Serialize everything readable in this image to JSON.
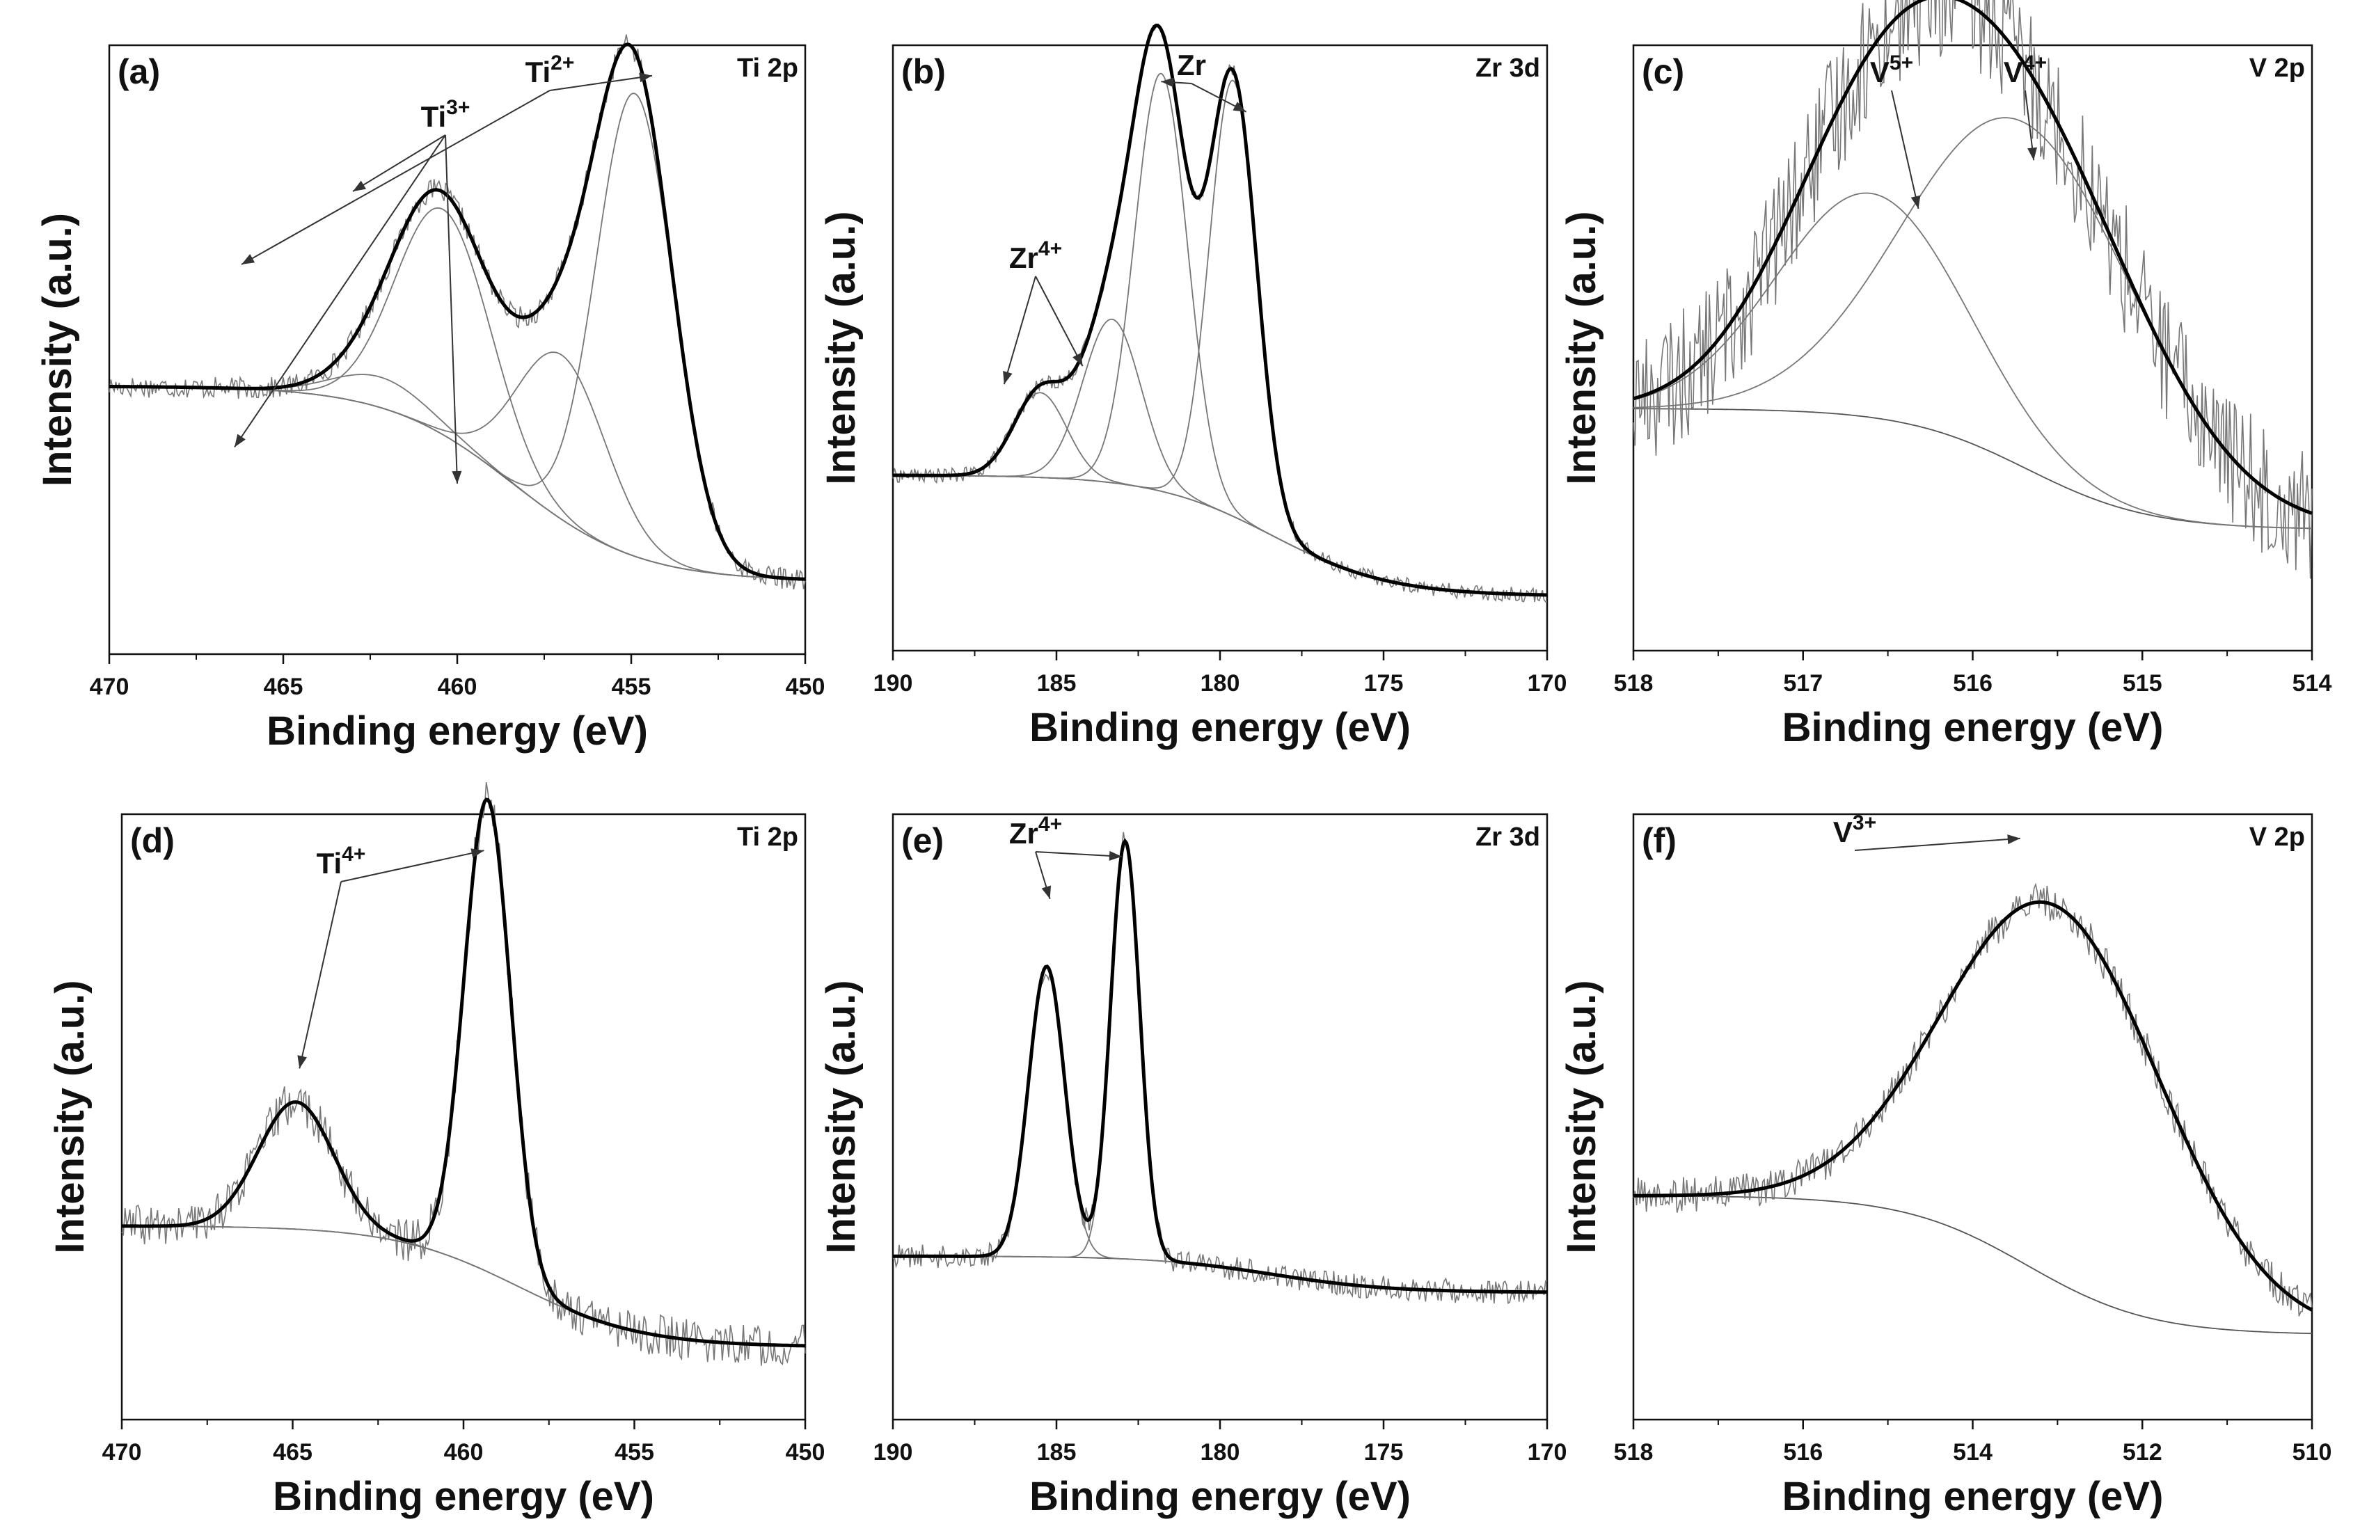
{
  "figure": {
    "panels": [
      {
        "id": "a",
        "panel_label": "(a)",
        "element_label": "Ti 2p",
        "chart_data": {
          "type": "line",
          "xlabel": "Binding energy (eV)",
          "ylabel": "Intensity (a.u.)",
          "xlim": [
            470,
            450
          ],
          "ylim": [
            0,
            1
          ],
          "x_ticks": [
            "470",
            "465",
            "460",
            "455",
            "450"
          ],
          "background": {
            "left": 0.44,
            "right": 0.12
          },
          "noise": 0.018,
          "peaks": [
            {
              "center": 462.2,
              "height": 0.05,
              "fwhm": 3.2
            },
            {
              "center": 460.4,
              "height": 0.37,
              "fwhm": 3.2
            },
            {
              "center": 457.0,
              "height": 0.27,
              "fwhm": 3.0
            },
            {
              "center": 454.9,
              "height": 0.76,
              "fwhm": 2.6
            }
          ],
          "annotations": [
            {
              "text": "Ti",
              "sup": "3+"
            },
            {
              "text": "Ti",
              "sup": "2+"
            }
          ]
        }
      },
      {
        "id": "b",
        "panel_label": "(b)",
        "element_label": "Zr 3d",
        "chart_data": {
          "type": "line",
          "xlabel": "Binding energy (eV)",
          "ylabel": "Intensity (a.u.)",
          "xlim": [
            190,
            170
          ],
          "ylim": [
            0,
            1
          ],
          "x_ticks": [
            "190",
            "185",
            "180",
            "175",
            "170"
          ],
          "background": {
            "left": 0.29,
            "right": 0.09
          },
          "noise": 0.012,
          "peaks": [
            {
              "center": 185.5,
              "height": 0.14,
              "fwhm": 1.9
            },
            {
              "center": 183.3,
              "height": 0.27,
              "fwhm": 2.1
            },
            {
              "center": 181.8,
              "height": 0.69,
              "fwhm": 1.9
            },
            {
              "center": 179.6,
              "height": 0.72,
              "fwhm": 1.7
            }
          ],
          "annotations": [
            {
              "text": "Zr",
              "sup": "4+"
            },
            {
              "text": "Zr",
              "sup": ""
            }
          ]
        }
      },
      {
        "id": "c",
        "panel_label": "(c)",
        "element_label": "V 2p",
        "chart_data": {
          "type": "line",
          "xlabel": "Binding energy (eV)",
          "ylabel": "Intensity (a.u.)",
          "xlim": [
            518,
            514
          ],
          "ylim": [
            0,
            1
          ],
          "x_ticks": [
            "518",
            "517",
            "516",
            "515",
            "514"
          ],
          "background": {
            "left": 0.4,
            "right": 0.2
          },
          "noise": 0.11,
          "peaks": [
            {
              "center": 516.6,
              "height": 0.37,
              "fwhm": 1.3
            },
            {
              "center": 515.7,
              "height": 0.57,
              "fwhm": 1.6
            }
          ],
          "annotations": [
            {
              "text": "V",
              "sup": "5+"
            },
            {
              "text": "V",
              "sup": "4+"
            }
          ]
        }
      },
      {
        "id": "d",
        "panel_label": "(d)",
        "element_label": "Ti 2p",
        "chart_data": {
          "type": "line",
          "xlabel": "Binding energy (eV)",
          "ylabel": "Intensity (a.u.)",
          "xlim": [
            470,
            450
          ],
          "ylim": [
            0,
            1
          ],
          "x_ticks": [
            "470",
            "465",
            "460",
            "455",
            "450"
          ],
          "background": {
            "left": 0.32,
            "right": 0.12
          },
          "noise": 0.035,
          "peaks": [
            {
              "center": 464.9,
              "height": 0.21,
              "fwhm": 2.6
            },
            {
              "center": 459.3,
              "height": 0.78,
              "fwhm": 1.6
            }
          ],
          "annotations": [
            {
              "text": "Ti",
              "sup": "4+"
            }
          ]
        }
      },
      {
        "id": "e",
        "panel_label": "(e)",
        "element_label": "Zr 3d",
        "chart_data": {
          "type": "line",
          "xlabel": "Binding energy (eV)",
          "ylabel": "Intensity (a.u.)",
          "xlim": [
            190,
            170
          ],
          "ylim": [
            0,
            1
          ],
          "x_ticks": [
            "190",
            "185",
            "180",
            "175",
            "170"
          ],
          "background": {
            "left": 0.27,
            "right": 0.21
          },
          "noise": 0.02,
          "peaks": [
            {
              "center": 185.3,
              "height": 0.48,
              "fwhm": 1.3
            },
            {
              "center": 182.9,
              "height": 0.69,
              "fwhm": 1.05
            }
          ],
          "annotations": [
            {
              "text": "Zr",
              "sup": "4+"
            }
          ]
        }
      },
      {
        "id": "f",
        "panel_label": "(f)",
        "element_label": "V 2p",
        "chart_data": {
          "type": "line",
          "xlabel": "Binding energy (eV)",
          "ylabel": "Intensity (a.u.)",
          "xlim": [
            518,
            510
          ],
          "ylim": [
            0,
            1
          ],
          "x_ticks": [
            "518",
            "516",
            "514",
            "512",
            "510"
          ],
          "background": {
            "left": 0.37,
            "right": 0.14
          },
          "noise": 0.03,
          "peaks": [
            {
              "center": 513.0,
              "height": 0.62,
              "fwhm": 3.0
            }
          ],
          "annotations": [
            {
              "text": "V",
              "sup": "3+"
            }
          ]
        }
      }
    ]
  }
}
